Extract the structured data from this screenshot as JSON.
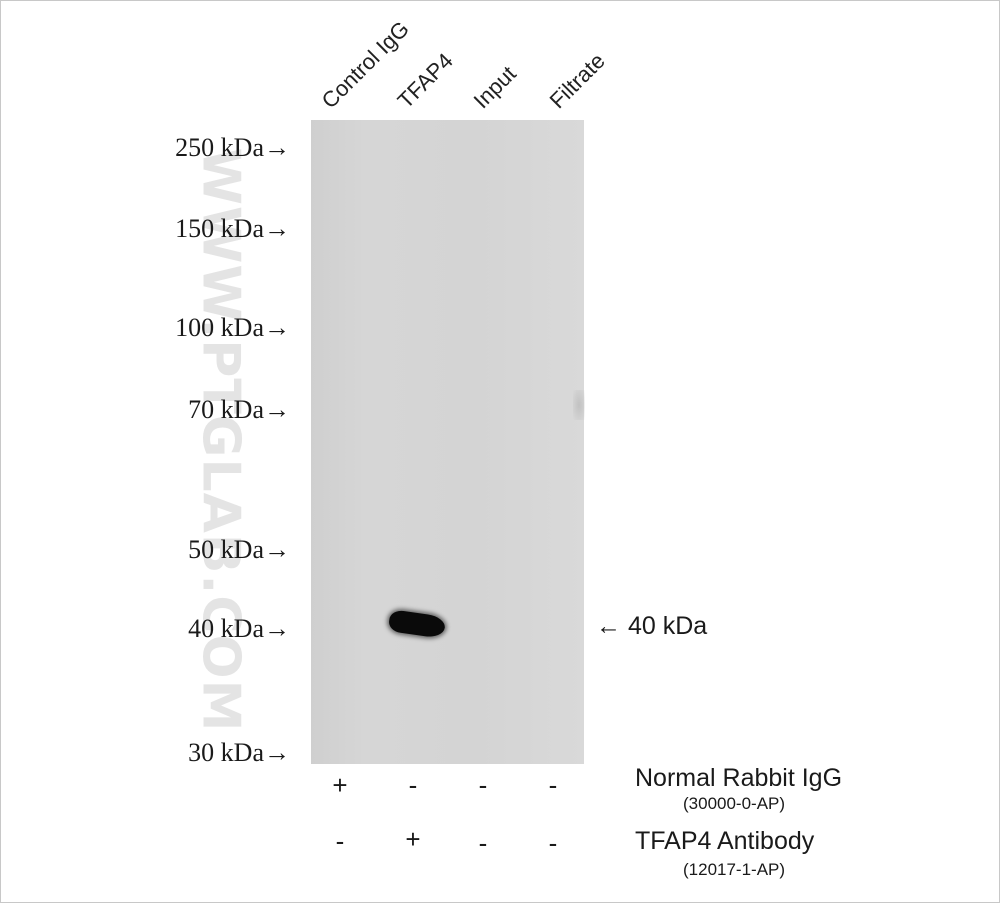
{
  "lanes": [
    "Control IgG",
    "TFAP4",
    "Input",
    "Filtrate"
  ],
  "markers": [
    "250 kDa→",
    "150 kDa→",
    "100 kDa→",
    "70 kDa→",
    "50 kDa→",
    "40 kDa→",
    "30 kDa→"
  ],
  "watermark": "WWW.PTGLAB.COM",
  "band_label": "← 40 kDa",
  "rows": [
    {
      "label": "Normal Rabbit IgG",
      "catalog": "(30000-0-AP)",
      "signs": [
        "+",
        "-",
        "-",
        "-"
      ]
    },
    {
      "label": "TFAP4 Antibody",
      "catalog": "(12017-1-AP)",
      "signs": [
        "-",
        "+",
        "-",
        "-"
      ]
    }
  ]
}
